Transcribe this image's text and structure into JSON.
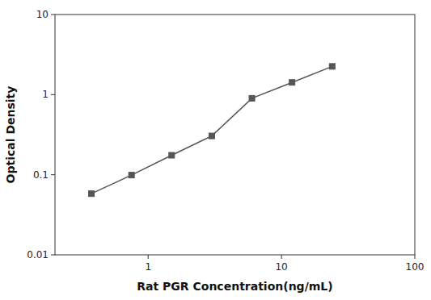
{
  "chart_data": {
    "type": "line",
    "xlabel": "Rat PGR Concentration(ng/mL)",
    "ylabel": "Optical Density",
    "x": [
      0.375,
      0.75,
      1.5,
      3,
      6,
      12,
      24
    ],
    "values": [
      0.058,
      0.099,
      0.175,
      0.305,
      0.9,
      1.42,
      2.25
    ],
    "color": "#555555",
    "marker": "square",
    "log": true,
    "grid": false,
    "xlim": [
      0.2,
      100
    ],
    "ylim": [
      0.01,
      10
    ],
    "xticks": [
      1,
      10,
      100
    ],
    "yticks": [
      0.01,
      0.1,
      1,
      10
    ]
  }
}
